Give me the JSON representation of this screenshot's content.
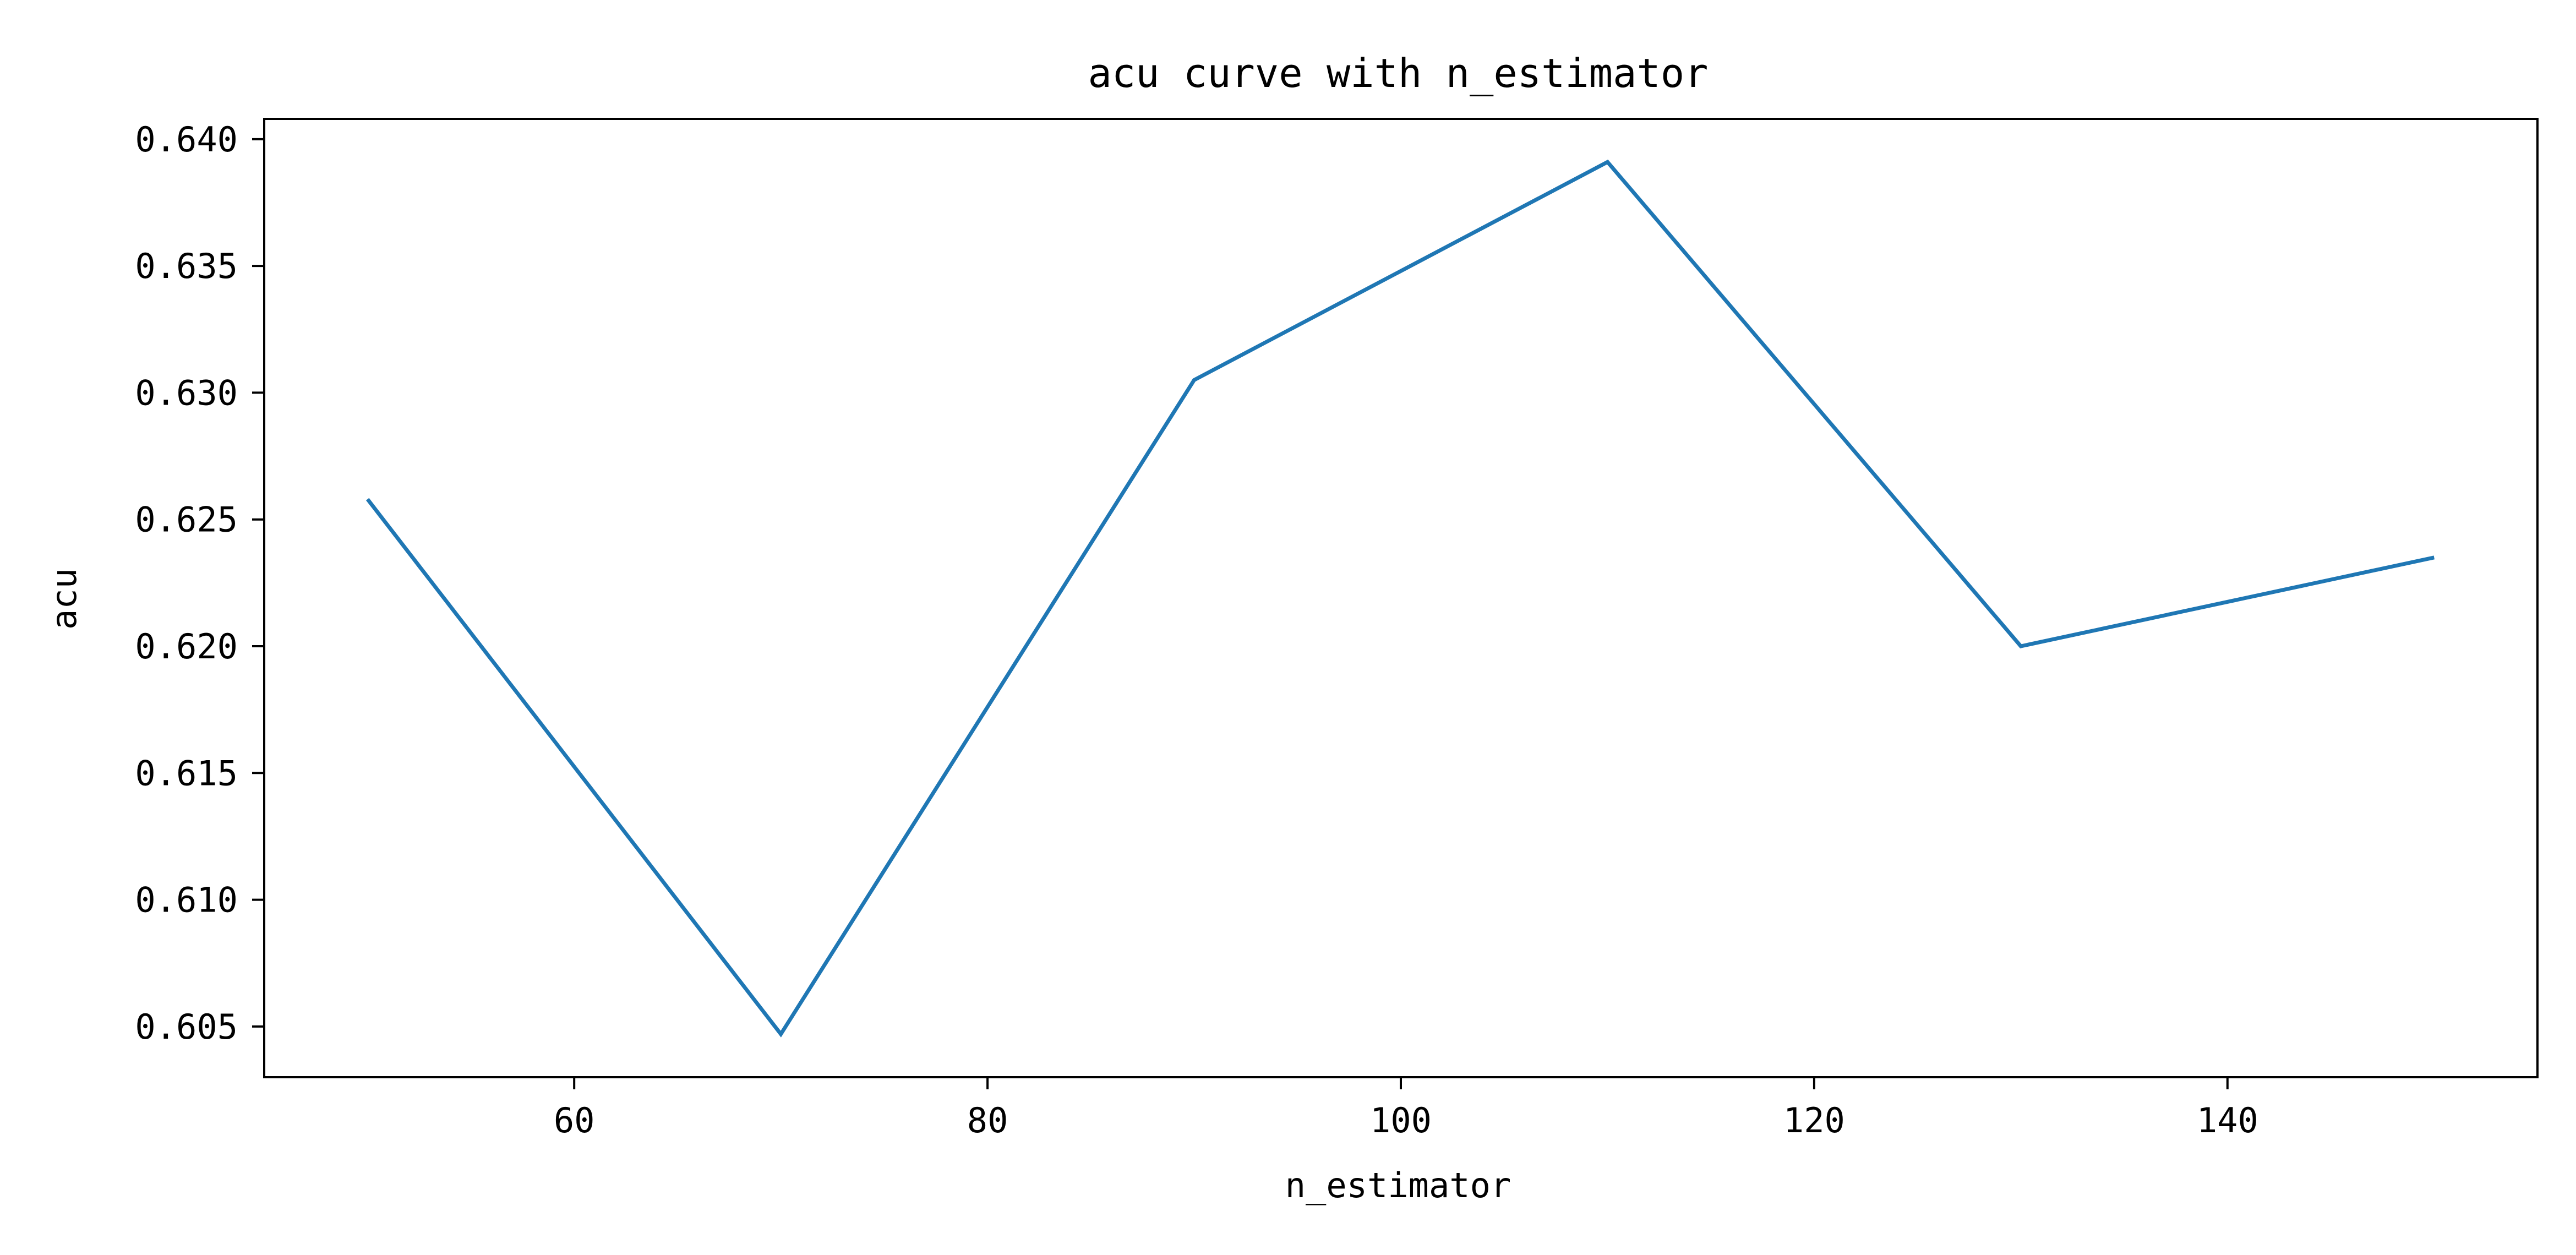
{
  "chart_data": {
    "type": "line",
    "title": "acu curve with n_estimator",
    "xlabel": "n_estimator",
    "ylabel": "acu",
    "xlim": [
      45,
      155
    ],
    "ylim": [
      0.603,
      0.6408
    ],
    "x_ticks": [
      60,
      80,
      100,
      120,
      140
    ],
    "x_tick_labels": [
      "60",
      "80",
      "100",
      "120",
      "140"
    ],
    "y_ticks": [
      0.605,
      0.61,
      0.615,
      0.62,
      0.625,
      0.63,
      0.635,
      0.64
    ],
    "y_tick_labels": [
      "0.605",
      "0.610",
      "0.615",
      "0.620",
      "0.625",
      "0.630",
      "0.635",
      "0.640"
    ],
    "grid": false,
    "series": [
      {
        "color": "#1f77b4",
        "x": [
          50,
          70,
          90,
          110,
          130,
          150
        ],
        "y": [
          0.6258,
          0.6047,
          0.6305,
          0.6391,
          0.62,
          0.6235
        ]
      }
    ]
  }
}
